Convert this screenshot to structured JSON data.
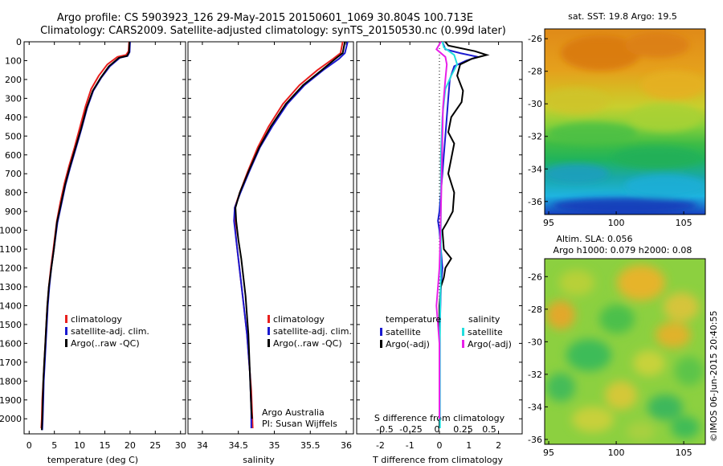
{
  "header": {
    "line1": "Argo profile: CS 5903923_126 29-May-2015 20150601_1069 30.804S 100.713E",
    "line2": "Climatology: CARS2009. Satellite-adjusted climatology: synTS_20150530.nc (0.99d later)"
  },
  "credit": {
    "line1": "Argo Australia",
    "line2": "PI: Susan Wijffels"
  },
  "watermark": "©IMOS 06-Jun-2015 20:40:55",
  "colors": {
    "climatology": "#e8201e",
    "satellite": "#1a1ad0",
    "argo": "#000000",
    "s_satellite": "#22dede",
    "s_argo": "#e820e8"
  },
  "chart_data": [
    {
      "type": "line",
      "xlabel": "temperature (deg C)",
      "ylim": [
        2080,
        0
      ],
      "xlim": [
        -1,
        31
      ],
      "x_ticks": [
        0,
        5,
        10,
        15,
        20,
        25,
        30
      ],
      "y_ticks": [
        0,
        100,
        200,
        300,
        400,
        500,
        600,
        700,
        800,
        900,
        1000,
        1100,
        1200,
        1300,
        1400,
        1500,
        1600,
        1700,
        1800,
        1900,
        2000
      ],
      "legend": [
        "climatology",
        "satellite-adj. clim.",
        "Argo(..raw -QC)"
      ],
      "series": [
        {
          "name": "climatology",
          "color": "#e8201e",
          "points": [
            [
              19.8,
              0
            ],
            [
              19.7,
              50
            ],
            [
              19.2,
              70
            ],
            [
              17.5,
              80
            ],
            [
              15.5,
              120
            ],
            [
              13.8,
              180
            ],
            [
              12.3,
              250
            ],
            [
              11.2,
              340
            ],
            [
              10.1,
              450
            ],
            [
              9.0,
              560
            ],
            [
              7.9,
              660
            ],
            [
              7.0,
              750
            ],
            [
              6.2,
              850
            ],
            [
              5.5,
              950
            ],
            [
              4.8,
              1100
            ],
            [
              4.3,
              1200
            ],
            [
              3.9,
              1300
            ],
            [
              3.6,
              1400
            ],
            [
              3.4,
              1500
            ],
            [
              3.2,
              1600
            ],
            [
              3.0,
              1700
            ],
            [
              2.8,
              1800
            ],
            [
              2.6,
              1900
            ],
            [
              2.5,
              2000
            ],
            [
              2.4,
              2050
            ]
          ]
        },
        {
          "name": "satellite-adj. clim.",
          "color": "#1a1ad0",
          "points": [
            [
              20.0,
              0
            ],
            [
              19.9,
              55
            ],
            [
              19.5,
              75
            ],
            [
              18.0,
              85
            ],
            [
              16.0,
              130
            ],
            [
              14.3,
              190
            ],
            [
              12.7,
              260
            ],
            [
              11.5,
              350
            ],
            [
              10.4,
              460
            ],
            [
              9.2,
              570
            ],
            [
              8.1,
              670
            ],
            [
              7.2,
              760
            ],
            [
              6.4,
              860
            ],
            [
              5.6,
              960
            ],
            [
              4.9,
              1100
            ],
            [
              4.4,
              1200
            ],
            [
              4.0,
              1300
            ],
            [
              3.7,
              1400
            ],
            [
              3.5,
              1500
            ],
            [
              3.3,
              1600
            ],
            [
              3.1,
              1700
            ],
            [
              2.9,
              1800
            ],
            [
              2.8,
              1900
            ],
            [
              2.7,
              2000
            ],
            [
              2.6,
              2060
            ]
          ]
        },
        {
          "name": "Argo(..raw -QC)",
          "color": "#000000",
          "points": [
            [
              19.9,
              0
            ],
            [
              19.8,
              55
            ],
            [
              19.4,
              75
            ],
            [
              17.8,
              85
            ],
            [
              15.8,
              130
            ],
            [
              14.2,
              190
            ],
            [
              12.6,
              260
            ],
            [
              11.4,
              350
            ],
            [
              10.3,
              460
            ],
            [
              9.1,
              570
            ],
            [
              8.0,
              670
            ],
            [
              7.1,
              760
            ],
            [
              6.3,
              860
            ],
            [
              5.5,
              960
            ],
            [
              4.9,
              1100
            ],
            [
              4.4,
              1200
            ],
            [
              3.9,
              1300
            ],
            [
              3.6,
              1400
            ],
            [
              3.4,
              1500
            ],
            [
              3.2,
              1600
            ],
            [
              3.0,
              1700
            ],
            [
              2.8,
              1800
            ],
            [
              2.7,
              1900
            ],
            [
              2.6,
              2000
            ],
            [
              2.5,
              2060
            ]
          ]
        }
      ]
    },
    {
      "type": "line",
      "xlabel": "salinity",
      "ylim": [
        2080,
        0
      ],
      "xlim": [
        33.8,
        36.1
      ],
      "x_ticks": [
        34,
        34.5,
        35,
        35.5,
        36
      ],
      "legend": [
        "climatology",
        "satellite-adj. clim.",
        "Argo(..raw -QC)"
      ],
      "series": [
        {
          "name": "climatology",
          "color": "#e8201e",
          "points": [
            [
              35.95,
              0
            ],
            [
              35.92,
              60
            ],
            [
              35.82,
              90
            ],
            [
              35.6,
              150
            ],
            [
              35.35,
              230
            ],
            [
              35.12,
              330
            ],
            [
              34.92,
              450
            ],
            [
              34.77,
              560
            ],
            [
              34.63,
              690
            ],
            [
              34.52,
              800
            ],
            [
              34.45,
              880
            ],
            [
              34.45,
              950
            ],
            [
              34.47,
              1050
            ],
            [
              34.5,
              1150
            ],
            [
              34.53,
              1250
            ],
            [
              34.56,
              1350
            ],
            [
              34.59,
              1450
            ],
            [
              34.62,
              1550
            ],
            [
              34.64,
              1650
            ],
            [
              34.66,
              1750
            ],
            [
              34.68,
              1850
            ],
            [
              34.69,
              1950
            ],
            [
              34.7,
              2050
            ]
          ]
        },
        {
          "name": "satellite-adj. clim.",
          "color": "#1a1ad0",
          "points": [
            [
              36.02,
              0
            ],
            [
              35.98,
              60
            ],
            [
              35.9,
              90
            ],
            [
              35.68,
              150
            ],
            [
              35.42,
              230
            ],
            [
              35.18,
              330
            ],
            [
              34.97,
              450
            ],
            [
              34.8,
              560
            ],
            [
              34.65,
              690
            ],
            [
              34.53,
              800
            ],
            [
              34.45,
              880
            ],
            [
              34.44,
              950
            ],
            [
              34.47,
              1050
            ],
            [
              34.5,
              1150
            ],
            [
              34.53,
              1250
            ],
            [
              34.56,
              1350
            ],
            [
              34.59,
              1450
            ],
            [
              34.62,
              1550
            ],
            [
              34.64,
              1650
            ],
            [
              34.66,
              1750
            ],
            [
              34.67,
              1850
            ],
            [
              34.68,
              1950
            ],
            [
              34.68,
              2050
            ]
          ]
        },
        {
          "name": "Argo(..raw -QC)",
          "color": "#000000",
          "points": [
            [
              35.98,
              0
            ],
            [
              35.95,
              60
            ],
            [
              35.85,
              90
            ],
            [
              35.66,
              150
            ],
            [
              35.4,
              230
            ],
            [
              35.16,
              330
            ],
            [
              34.95,
              450
            ],
            [
              34.79,
              560
            ],
            [
              34.64,
              690
            ],
            [
              34.52,
              800
            ],
            [
              34.46,
              880
            ],
            [
              34.47,
              950
            ],
            [
              34.5,
              1050
            ],
            [
              34.54,
              1150
            ],
            [
              34.57,
              1250
            ],
            [
              34.6,
              1350
            ],
            [
              34.62,
              1450
            ],
            [
              34.64,
              1550
            ],
            [
              34.65,
              1650
            ],
            [
              34.66,
              1750
            ],
            [
              34.67,
              1850
            ],
            [
              34.68,
              1950
            ],
            [
              34.69,
              2000
            ]
          ]
        }
      ]
    },
    {
      "type": "line",
      "xlabel": "T difference from climatology",
      "x2label": "S difference from climatology",
      "ylim": [
        2080,
        0
      ],
      "xlim": [
        -2.8,
        2.8
      ],
      "x_ticks": [
        -2,
        -1,
        0,
        1,
        2
      ],
      "x2_ticks": [
        -0.5,
        -0.25,
        0,
        0.25,
        0.5
      ],
      "legend_left_title": "temperature",
      "legend_right_title": "salinity",
      "legend_left": [
        "satellite",
        "Argo(-adj)"
      ],
      "legend_right": [
        "satellite",
        "Argo(-adj)"
      ],
      "series": [
        {
          "name": "T satellite",
          "color": "#1a1ad0",
          "points": [
            [
              0.1,
              0
            ],
            [
              0.2,
              40
            ],
            [
              0.7,
              60
            ],
            [
              1.3,
              80
            ],
            [
              0.9,
              100
            ],
            [
              0.5,
              130
            ],
            [
              0.35,
              200
            ],
            [
              0.3,
              300
            ],
            [
              0.25,
              400
            ],
            [
              0.2,
              500
            ],
            [
              0.15,
              600
            ],
            [
              0.1,
              700
            ],
            [
              0.05,
              800
            ],
            [
              0,
              900
            ],
            [
              -0.05,
              950
            ],
            [
              0,
              1000
            ],
            [
              0.05,
              1100
            ],
            [
              0.1,
              1200
            ],
            [
              0.05,
              1300
            ],
            [
              0.02,
              1500
            ],
            [
              0,
              1700
            ],
            [
              0,
              2050
            ]
          ]
        },
        {
          "name": "T Argo(-adj)",
          "color": "#000000",
          "points": [
            [
              0.2,
              0
            ],
            [
              0.3,
              20
            ],
            [
              1.2,
              50
            ],
            [
              1.6,
              70
            ],
            [
              1.1,
              90
            ],
            [
              0.7,
              120
            ],
            [
              0.6,
              180
            ],
            [
              0.8,
              260
            ],
            [
              0.75,
              320
            ],
            [
              0.4,
              400
            ],
            [
              0.3,
              480
            ],
            [
              0.5,
              540
            ],
            [
              0.4,
              620
            ],
            [
              0.3,
              700
            ],
            [
              0.5,
              800
            ],
            [
              0.45,
              900
            ],
            [
              0.25,
              960
            ],
            [
              0.1,
              1000
            ],
            [
              0.15,
              1100
            ],
            [
              0.4,
              1150
            ],
            [
              0.2,
              1200
            ],
            [
              0.15,
              1250
            ],
            [
              0.05,
              1300
            ],
            [
              0,
              1400
            ],
            [
              0,
              2050
            ]
          ]
        },
        {
          "name": "S satellite",
          "color": "#22dede",
          "points": [
            [
              0.1,
              0
            ],
            [
              0.15,
              30
            ],
            [
              0.5,
              70
            ],
            [
              0.6,
              120
            ],
            [
              0.4,
              180
            ],
            [
              0.2,
              250
            ],
            [
              0.1,
              400
            ],
            [
              0.05,
              600
            ],
            [
              0.05,
              900
            ],
            [
              0.05,
              1200
            ],
            [
              0.02,
              1500
            ],
            [
              0.02,
              2050
            ]
          ]
        },
        {
          "name": "S Argo(-adj)",
          "color": "#e820e8",
          "points": [
            [
              0.05,
              0
            ],
            [
              -0.1,
              40
            ],
            [
              0.2,
              80
            ],
            [
              0.25,
              120
            ],
            [
              0.2,
              200
            ],
            [
              0.12,
              350
            ],
            [
              0.1,
              500
            ],
            [
              0.08,
              700
            ],
            [
              0.05,
              900
            ],
            [
              0.02,
              1100
            ],
            [
              0.0,
              1200
            ],
            [
              -0.05,
              1300
            ],
            [
              -0.1,
              1400
            ],
            [
              -0.05,
              1500
            ],
            [
              0,
              1600
            ],
            [
              0,
              2000
            ]
          ]
        }
      ]
    },
    {
      "type": "heatmap",
      "title": "sat. SST: 19.8 Argo: 19.5",
      "x_ticks": [
        95,
        100,
        105
      ],
      "y_ticks": [
        -26,
        -28,
        -30,
        -32,
        -34,
        -36
      ]
    },
    {
      "type": "heatmap",
      "title_line1": "Altim. SLA: 0.056",
      "title_line2": "Argo h1000: 0.079 h2000: 0.08",
      "x_ticks": [
        95,
        100,
        105
      ],
      "y_ticks": [
        -26,
        -28,
        -30,
        -32,
        -34,
        -36
      ]
    }
  ]
}
